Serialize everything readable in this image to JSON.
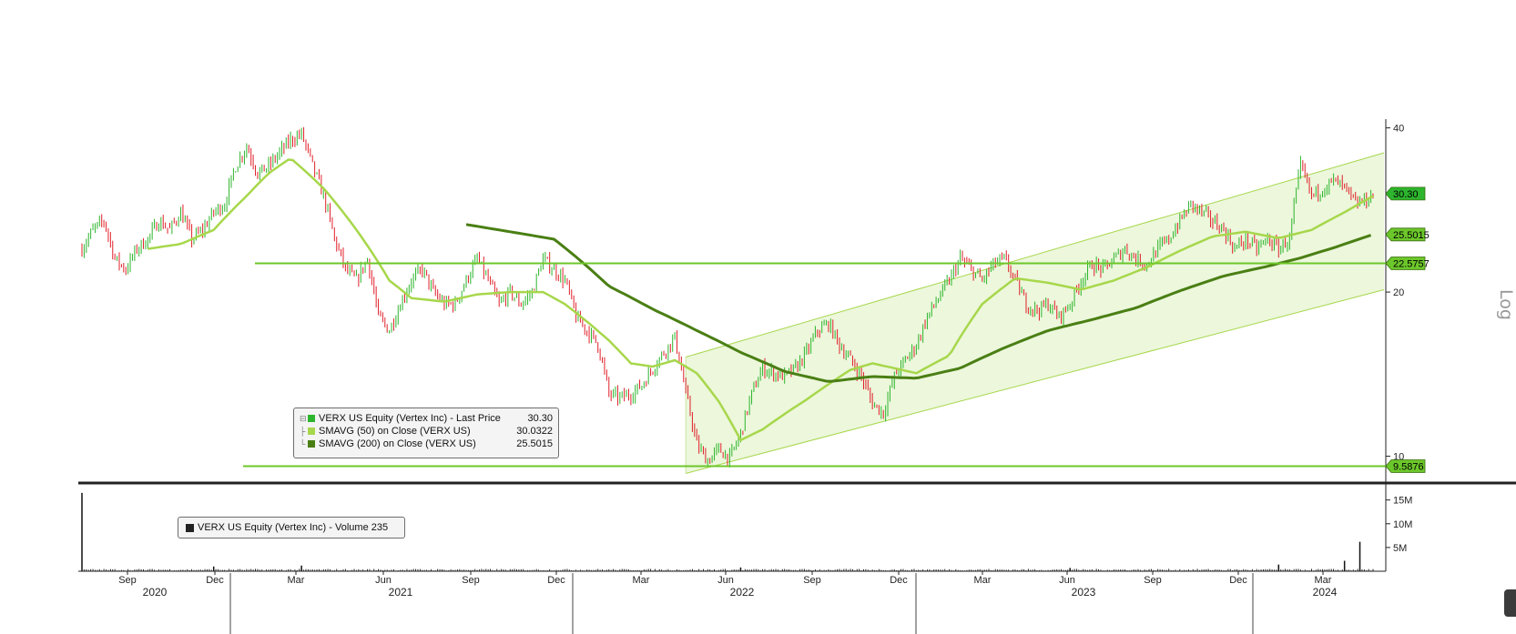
{
  "chart_data": {
    "type": "line",
    "ticker": "VERX US Equity (Vertex Inc)",
    "scale": "log",
    "y_ticks": [
      10,
      20,
      40
    ],
    "ylim": [
      9.0,
      41.5
    ],
    "x_month_ticks": [
      "Sep",
      "Dec",
      "Mar",
      "Jun",
      "Sep",
      "Dec",
      "Mar",
      "Jun",
      "Sep",
      "Dec",
      "Mar",
      "Jun",
      "Sep",
      "Dec",
      "Mar"
    ],
    "x_year_labels": [
      "2020",
      "2021",
      "2022",
      "2023",
      "2024"
    ],
    "last_price": {
      "value": 30.3,
      "label": "30.30"
    },
    "horizontal_levels": [
      {
        "value": 22.5757,
        "label": "22.5757"
      },
      {
        "value": 9.5876,
        "label": "9.5876"
      }
    ],
    "sma200_tag": {
      "value": 25.5015,
      "label": "25.5015"
    },
    "channel": {
      "start": {
        "date": "2022-05",
        "lower": 9.3,
        "upper": 15.2
      },
      "end": {
        "date": "2024-04",
        "lower": 20.2,
        "upper": 36.0
      }
    },
    "series": [
      {
        "name": "VERX US Equity (Vertex Inc) - Last Price",
        "legend_value": "30.30",
        "color": "#2db52d",
        "anchors": [
          [
            0,
            24
          ],
          [
            5,
            26
          ],
          [
            10,
            27
          ],
          [
            15,
            23
          ],
          [
            20,
            22
          ],
          [
            25,
            24
          ],
          [
            30,
            25
          ],
          [
            35,
            27
          ],
          [
            40,
            26
          ],
          [
            45,
            28
          ],
          [
            50,
            25
          ],
          [
            55,
            26
          ],
          [
            60,
            28
          ],
          [
            65,
            29
          ],
          [
            70,
            34
          ],
          [
            75,
            37
          ],
          [
            80,
            33
          ],
          [
            85,
            34
          ],
          [
            90,
            36
          ],
          [
            95,
            38
          ],
          [
            100,
            39
          ],
          [
            105,
            34
          ],
          [
            110,
            30
          ],
          [
            115,
            25
          ],
          [
            120,
            22
          ],
          [
            125,
            21
          ],
          [
            130,
            23
          ],
          [
            135,
            18
          ],
          [
            140,
            17
          ],
          [
            145,
            19
          ],
          [
            150,
            21
          ],
          [
            155,
            22
          ],
          [
            160,
            20
          ],
          [
            165,
            19
          ],
          [
            170,
            19
          ],
          [
            175,
            21
          ],
          [
            180,
            23
          ],
          [
            185,
            21
          ],
          [
            190,
            19
          ],
          [
            195,
            20
          ],
          [
            200,
            19
          ],
          [
            205,
            20
          ],
          [
            210,
            23
          ],
          [
            215,
            22
          ],
          [
            220,
            21
          ],
          [
            225,
            18
          ],
          [
            230,
            17
          ],
          [
            235,
            16
          ],
          [
            240,
            13
          ],
          [
            245,
            12.8
          ],
          [
            250,
            13
          ],
          [
            255,
            13.5
          ],
          [
            260,
            14.5
          ],
          [
            265,
            15.5
          ],
          [
            270,
            16.5
          ],
          [
            275,
            13
          ],
          [
            280,
            10.5
          ],
          [
            285,
            9.8
          ],
          [
            290,
            10.3
          ],
          [
            295,
            9.9
          ],
          [
            300,
            11
          ],
          [
            305,
            13
          ],
          [
            310,
            14.5
          ],
          [
            315,
            14.2
          ],
          [
            320,
            14
          ],
          [
            325,
            14.5
          ],
          [
            330,
            15.5
          ],
          [
            335,
            17
          ],
          [
            340,
            17.5
          ],
          [
            345,
            16
          ],
          [
            350,
            15
          ],
          [
            355,
            14
          ],
          [
            360,
            12.5
          ],
          [
            365,
            12
          ],
          [
            370,
            14
          ],
          [
            375,
            15
          ],
          [
            380,
            16
          ],
          [
            385,
            18
          ],
          [
            390,
            19.5
          ],
          [
            395,
            21
          ],
          [
            400,
            23
          ],
          [
            405,
            22
          ],
          [
            410,
            21
          ],
          [
            415,
            22.5
          ],
          [
            420,
            23
          ],
          [
            425,
            21
          ],
          [
            430,
            19
          ],
          [
            435,
            18.5
          ],
          [
            440,
            19
          ],
          [
            445,
            18
          ],
          [
            450,
            19
          ],
          [
            455,
            21
          ],
          [
            460,
            22.5
          ],
          [
            465,
            22
          ],
          [
            470,
            23
          ],
          [
            475,
            24
          ],
          [
            480,
            23
          ],
          [
            485,
            22.5
          ],
          [
            490,
            24
          ],
          [
            495,
            25
          ],
          [
            500,
            27
          ],
          [
            505,
            29
          ],
          [
            510,
            28
          ],
          [
            515,
            27
          ],
          [
            520,
            26
          ],
          [
            525,
            24
          ],
          [
            530,
            25
          ],
          [
            535,
            24
          ],
          [
            540,
            25
          ],
          [
            545,
            24
          ],
          [
            550,
            25
          ],
          [
            555,
            34
          ],
          [
            560,
            30
          ],
          [
            565,
            31
          ],
          [
            570,
            32
          ],
          [
            575,
            31
          ],
          [
            580,
            29
          ],
          [
            585,
            29.5
          ],
          [
            588,
            30.3
          ]
        ]
      },
      {
        "name": "SMAVG (50) on Close (VERX US)",
        "legend_value": "30.0322",
        "color": "#a7d74b",
        "anchors": [
          [
            30,
            24
          ],
          [
            45,
            24.5
          ],
          [
            60,
            26
          ],
          [
            75,
            30
          ],
          [
            85,
            33
          ],
          [
            95,
            35.2
          ],
          [
            110,
            31
          ],
          [
            125,
            26
          ],
          [
            140,
            21
          ],
          [
            150,
            19.5
          ],
          [
            165,
            19.2
          ],
          [
            180,
            19.8
          ],
          [
            195,
            20
          ],
          [
            210,
            20
          ],
          [
            220,
            19
          ],
          [
            240,
            16.3
          ],
          [
            250,
            14.8
          ],
          [
            260,
            14.6
          ],
          [
            270,
            15
          ],
          [
            280,
            14.2
          ],
          [
            290,
            12.6
          ],
          [
            300,
            10.7
          ],
          [
            310,
            11.2
          ],
          [
            330,
            12.7
          ],
          [
            350,
            14.4
          ],
          [
            360,
            14.8
          ],
          [
            370,
            14.5
          ],
          [
            380,
            14.2
          ],
          [
            395,
            15.3
          ],
          [
            410,
            19
          ],
          [
            425,
            21.2
          ],
          [
            440,
            20.8
          ],
          [
            455,
            20.2
          ],
          [
            470,
            21
          ],
          [
            485,
            22.2
          ],
          [
            500,
            23.8
          ],
          [
            515,
            25.3
          ],
          [
            530,
            25.8
          ],
          [
            545,
            25.1
          ],
          [
            560,
            26
          ],
          [
            575,
            28
          ],
          [
            588,
            30
          ]
        ]
      },
      {
        "name": "SMAVG (200) on Close (VERX US)",
        "legend_value": "25.5015",
        "color": "#4a7f14",
        "anchors": [
          [
            175,
            26.6
          ],
          [
            200,
            25.6
          ],
          [
            215,
            25
          ],
          [
            225,
            23.2
          ],
          [
            240,
            20.5
          ],
          [
            260,
            18.6
          ],
          [
            280,
            17
          ],
          [
            300,
            15.5
          ],
          [
            320,
            14.3
          ],
          [
            340,
            13.7
          ],
          [
            360,
            14.0
          ],
          [
            380,
            13.9
          ],
          [
            400,
            14.5
          ],
          [
            420,
            15.8
          ],
          [
            440,
            17
          ],
          [
            460,
            17.8
          ],
          [
            480,
            18.7
          ],
          [
            500,
            20.1
          ],
          [
            520,
            21.4
          ],
          [
            540,
            22.3
          ],
          [
            555,
            23.1
          ],
          [
            570,
            24.1
          ],
          [
            588,
            25.5
          ]
        ]
      }
    ],
    "volume": {
      "name": "VERX US Equity (Vertex Inc) - Volume",
      "legend_value": "235",
      "y_ticks": [
        "5M",
        "10M",
        "15M"
      ],
      "ylim_millions": [
        0,
        18
      ],
      "spikes": [
        [
          0,
          16.5
        ],
        [
          60,
          1.0
        ],
        [
          100,
          1.2
        ],
        [
          300,
          0.8
        ],
        [
          450,
          0.7
        ],
        [
          545,
          1.4
        ],
        [
          575,
          2.2
        ],
        [
          582,
          6.2
        ]
      ]
    }
  }
}
